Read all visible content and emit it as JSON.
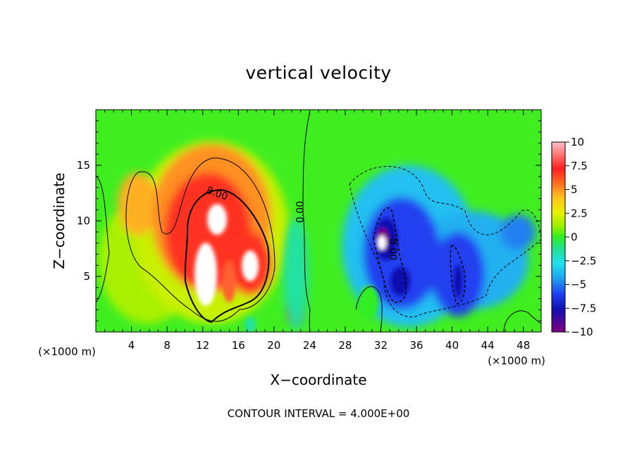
{
  "chart_data": {
    "type": "heatmap",
    "title": "vertical velocity",
    "xlabel": "X−coordinate",
    "ylabel": "Z−coordinate",
    "x_unit_label": "(×1000 m)",
    "footer": "CONTOUR INTERVAL = 4.000E+00",
    "xlim": [
      0,
      50
    ],
    "ylim": [
      0,
      20
    ],
    "x_ticks": [
      "4",
      "8",
      "12",
      "16",
      "20",
      "24",
      "28",
      "32",
      "36",
      "40",
      "44",
      "48"
    ],
    "x_tick_values": [
      4,
      8,
      12,
      16,
      20,
      24,
      28,
      32,
      36,
      40,
      44,
      48
    ],
    "y_ticks": [
      "5",
      "10",
      "15"
    ],
    "y_tick_values": [
      5,
      10,
      15
    ],
    "colorbar": {
      "ticks": [
        "10",
        "7.5",
        "5",
        "2.5",
        "0",
        "−2.5",
        "−5",
        "−7.5",
        "−10"
      ],
      "tick_values": [
        10,
        7.5,
        5,
        2.5,
        0,
        -2.5,
        -5,
        -7.5,
        -10
      ],
      "range": [
        -10,
        10
      ]
    },
    "contour_interval": 4.0,
    "contour_labels": [
      {
        "text": "8.00",
        "x": 13.5,
        "y": 12.2,
        "angle": 20
      },
      {
        "text": "0.00",
        "x": 23.3,
        "y": 10.8,
        "angle": -90
      },
      {
        "text": "-8.00",
        "x": 33.0,
        "y": 7.6,
        "angle": 90
      }
    ],
    "features": [
      {
        "type": "updraft",
        "x": 13.5,
        "z": 6.5,
        "max": 12
      },
      {
        "type": "updraft",
        "x": 17.0,
        "z": 6.0,
        "max": 11
      },
      {
        "type": "updraft",
        "x": 13.8,
        "z": 10.5,
        "max": 11
      },
      {
        "type": "downdraft",
        "x": 32.0,
        "z": 8.5,
        "min": -12
      },
      {
        "type": "downdraft",
        "x": 34.0,
        "z": 4.0,
        "min": -8
      },
      {
        "type": "downdraft",
        "x": 40.0,
        "z": 5.0,
        "min": -8
      }
    ]
  }
}
